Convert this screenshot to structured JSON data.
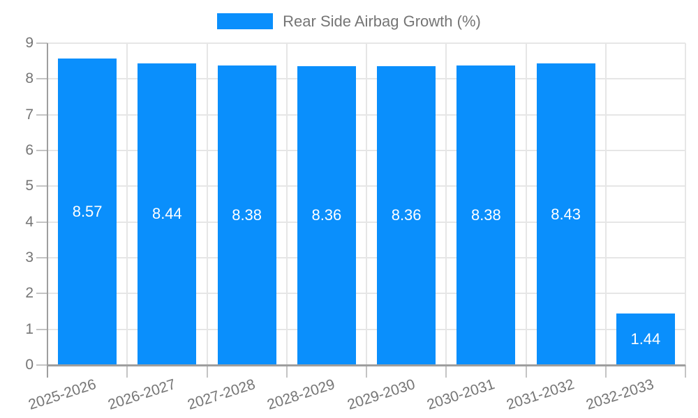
{
  "chart_data": {
    "type": "bar",
    "title": "Rear Side Airbag Growth (%)",
    "legend": {
      "label": "Rear Side Airbag Growth (%)",
      "position": "top"
    },
    "categories": [
      "2025-2026",
      "2026-2027",
      "2027-2028",
      "2028-2029",
      "2029-2030",
      "2030-2031",
      "2031-2032",
      "2032-2033"
    ],
    "values": [
      8.57,
      8.44,
      8.38,
      8.36,
      8.36,
      8.38,
      8.43,
      1.44
    ],
    "value_labels": [
      "8.57",
      "8.44",
      "8.38",
      "8.36",
      "8.36",
      "8.38",
      "8.43",
      "1.44"
    ],
    "xlabel": "",
    "ylabel": "",
    "ylim": [
      0,
      9
    ],
    "yticks": [
      "0",
      "1",
      "2",
      "3",
      "4",
      "5",
      "6",
      "7",
      "8",
      "9"
    ],
    "grid": true,
    "colors": {
      "bar": "#0a8ffc",
      "value_label_text": "#ffffff",
      "axis_text": "#757575",
      "axis_line": "#9e9e9e",
      "gridline": "#e6e6e6",
      "tick": "#c4c4c4"
    }
  }
}
